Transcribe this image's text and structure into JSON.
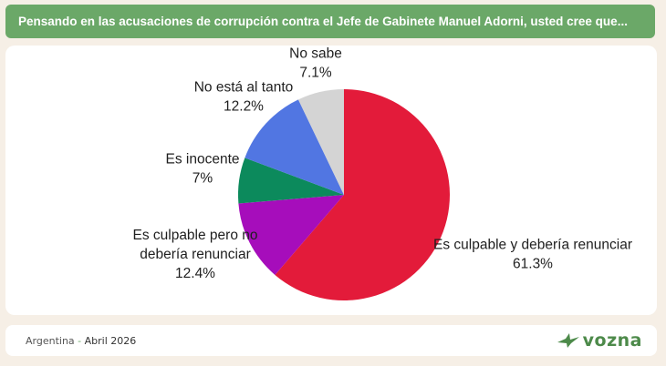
{
  "header": {
    "title": "Pensando en las acusaciones de corrupción contra el Jefe de Gabinete Manuel Adorni, usted cree que..."
  },
  "chart_data": {
    "type": "pie",
    "start_angle_deg": 0,
    "direction": "clockwise",
    "slices": [
      {
        "label_lines": [
          "Es culpable y debería renunciar"
        ],
        "value": 61.3,
        "value_label": "61.3%",
        "color": "#e31b3a"
      },
      {
        "label_lines": [
          "Es culpable pero no",
          "debería renunciar"
        ],
        "value": 12.4,
        "value_label": "12.4%",
        "color": "#a60dbb"
      },
      {
        "label_lines": [
          "Es inocente"
        ],
        "value": 7.0,
        "value_label": "7%",
        "color": "#0c8a5c"
      },
      {
        "label_lines": [
          "No está al tanto"
        ],
        "value": 12.2,
        "value_label": "12.2%",
        "color": "#5176e2"
      },
      {
        "label_lines": [
          "No sabe"
        ],
        "value": 7.1,
        "value_label": "7.1%",
        "color": "#d4d4d4"
      }
    ]
  },
  "footer": {
    "location": "Argentina",
    "separator": " - ",
    "date": "Abril 2026",
    "brand": "vozna"
  },
  "colors": {
    "title_bar": "#6ba868",
    "background": "#f6efe6",
    "brand": "#4d8a4a"
  }
}
